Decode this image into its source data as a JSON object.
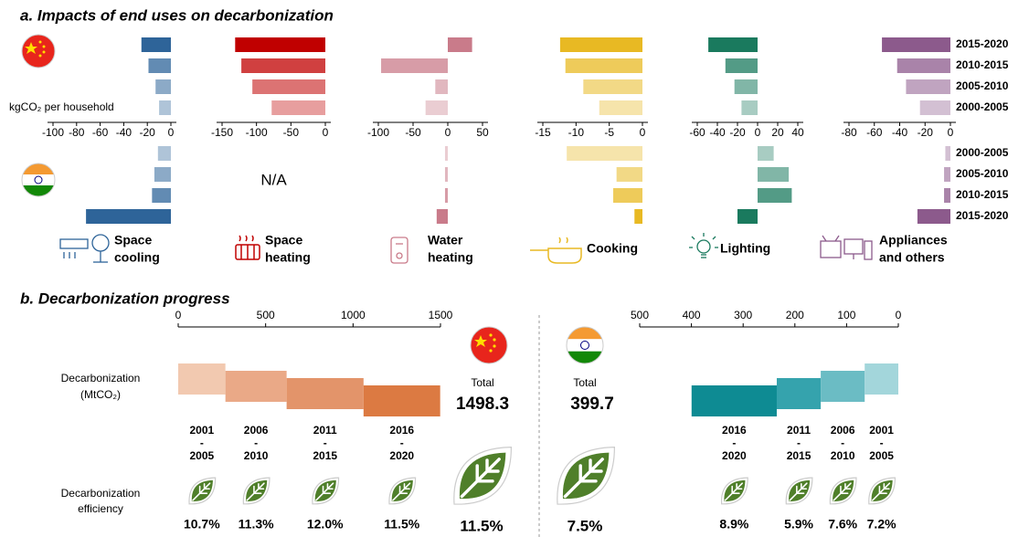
{
  "panel_a": {
    "title": "a. Impacts of end uses on decarbonization",
    "unit_label": "kgCO₂ per household",
    "china_periods": [
      "2015-2020",
      "2010-2015",
      "2005-2010",
      "2000-2005"
    ],
    "india_periods": [
      "2000-2005",
      "2005-2010",
      "2010-2015",
      "2015-2020"
    ]
  },
  "panel_b": {
    "title": "b. Decarbonization progress",
    "row_label_1": [
      "Decarbonization",
      "(MtCO₂)"
    ],
    "row_label_2": [
      "Decarbonization",
      "efficiency"
    ],
    "china_total_label": "Total",
    "india_total_label": "Total"
  },
  "chart_data": [
    {
      "type": "hbar",
      "label": [
        "Space",
        "cooling"
      ],
      "color": "#2e6499",
      "xlim": [
        -100,
        0
      ],
      "xticks": [
        -100,
        -80,
        -60,
        -40,
        -20,
        0
      ],
      "china_values": [
        -25,
        -19,
        -13,
        -10
      ],
      "india_values": [
        -11,
        -14,
        -16,
        -72
      ]
    },
    {
      "type": "hbar",
      "label": [
        "Space",
        "heating"
      ],
      "color": "#c00000",
      "xlim": [
        -150,
        0
      ],
      "xticks": [
        -150,
        -100,
        -50,
        0
      ],
      "china_values": [
        -131,
        -122,
        -106,
        -78
      ],
      "india_note": "N/A"
    },
    {
      "type": "hbar",
      "label": [
        "Water",
        "heating"
      ],
      "color": "#c97b8a",
      "xlim": [
        -100,
        50
      ],
      "xticks": [
        -100,
        -50,
        0,
        50
      ],
      "china_values": [
        35,
        -96,
        -18,
        -32
      ],
      "india_values": [
        -4,
        -4,
        -4,
        -16
      ]
    },
    {
      "type": "hbar",
      "label": [
        "Cooking"
      ],
      "color": "#e8b923",
      "xlim": [
        -15,
        0
      ],
      "xticks": [
        -15,
        -10,
        -5,
        0
      ],
      "china_values": [
        -12.4,
        -11.6,
        -8.9,
        -6.5
      ],
      "india_values": [
        -11.4,
        -3.9,
        -4.4,
        -1.2
      ]
    },
    {
      "type": "hbar",
      "label": [
        "Lighting"
      ],
      "color": "#1a7a5e",
      "xlim": [
        -60,
        40
      ],
      "xticks": [
        -60,
        -40,
        -20,
        0,
        20,
        40
      ],
      "china_values": [
        -49,
        -32,
        -23,
        -16
      ],
      "india_values": [
        16,
        31,
        34,
        -20
      ]
    },
    {
      "type": "hbar",
      "label": [
        "Appliances",
        "and others"
      ],
      "color": "#8c5a8c",
      "xlim": [
        -80,
        0
      ],
      "xticks": [
        -80,
        -60,
        -40,
        -20,
        0
      ],
      "china_values": [
        -54,
        -42,
        -35,
        -24
      ],
      "india_values": [
        -4,
        -5,
        -5,
        -26
      ]
    },
    {
      "type": "waterfall",
      "xlim": [
        0,
        1500
      ],
      "xticks": [
        0,
        500,
        1000,
        1500
      ],
      "categories": [
        [
          "2001",
          "-",
          "2005"
        ],
        [
          "2006",
          "-",
          "2010"
        ],
        [
          "2011",
          "-",
          "2015"
        ],
        [
          "2016",
          "-",
          "2020"
        ]
      ],
      "values": [
        270,
        350,
        440,
        438.3
      ],
      "colors": [
        "#f2c9b0",
        "#eaa987",
        "#e3946a",
        "#dc7a42"
      ],
      "total": 1498.3,
      "total_color": "#dc7a42",
      "efficiency_labels": [
        "10.7%",
        "11.3%",
        "12.0%",
        "11.5%"
      ],
      "total_efficiency_label": "11.5%"
    },
    {
      "type": "waterfall",
      "xlim": [
        500,
        0
      ],
      "xticks": [
        500,
        400,
        300,
        200,
        100,
        0
      ],
      "categories": [
        [
          "2016",
          "-",
          "2020"
        ],
        [
          "2011",
          "-",
          "2015"
        ],
        [
          "2006",
          "-",
          "2010"
        ],
        [
          "2001",
          "-",
          "2005"
        ]
      ],
      "values": [
        164.7,
        85,
        85,
        65
      ],
      "colors": [
        "#0e8b93",
        "#35a3ad",
        "#6bbcc4",
        "#a3d6db"
      ],
      "total": 399.7,
      "total_color": "#1a8f98",
      "efficiency_labels": [
        "8.9%",
        "5.9%",
        "7.6%",
        "7.2%"
      ],
      "total_efficiency_label": "7.5%"
    }
  ]
}
